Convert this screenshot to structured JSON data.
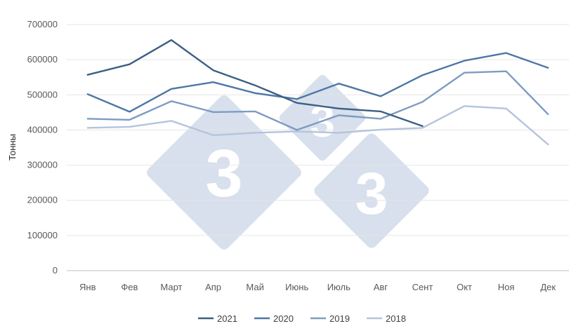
{
  "chart_data": {
    "type": "line",
    "title": "",
    "xlabel": "",
    "ylabel": "Тонны",
    "ylim": [
      0,
      700000
    ],
    "yticks": [
      "0",
      "100000",
      "200000",
      "300000",
      "400000",
      "500000",
      "600000",
      "700000"
    ],
    "categories": [
      "Янв",
      "Фев",
      "Март",
      "Апр",
      "Май",
      "Июнь",
      "Июль",
      "Авг",
      "Сент",
      "Окт",
      "Ноя",
      "Дек"
    ],
    "grid": true,
    "legend_position": "bottom",
    "series": [
      {
        "name": "2021",
        "color": "#3c5f84",
        "values": [
          557000,
          587000,
          656000,
          570000,
          527000,
          477000,
          461000,
          453000,
          411000,
          null,
          null,
          null
        ]
      },
      {
        "name": "2020",
        "color": "#4d77a6",
        "values": [
          502000,
          452000,
          517000,
          536000,
          505000,
          488000,
          532000,
          496000,
          556000,
          597000,
          619000,
          577000
        ]
      },
      {
        "name": "2019",
        "color": "#7d9bc2",
        "values": [
          432000,
          429000,
          482000,
          451000,
          453000,
          400000,
          442000,
          432000,
          480000,
          563000,
          567000,
          445000
        ]
      },
      {
        "name": "2018",
        "color": "#b4c4dc",
        "values": [
          406000,
          409000,
          426000,
          385000,
          392000,
          396000,
          392000,
          401000,
          406000,
          468000,
          461000,
          359000
        ]
      }
    ]
  },
  "watermark": {
    "glyph": "3",
    "color": "#d7e0ec"
  }
}
